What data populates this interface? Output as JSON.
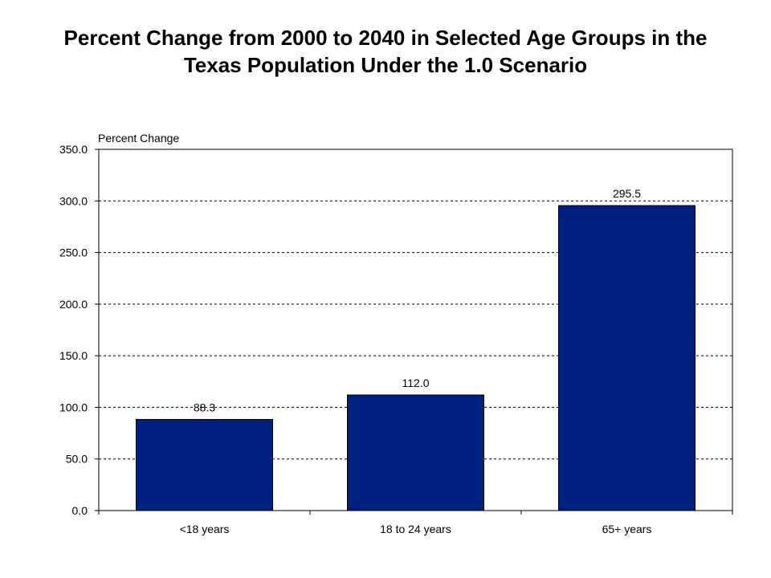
{
  "chart_data": {
    "type": "bar",
    "title": "Percent Change from 2000 to 2040 in Selected Age Groups in the Texas Population Under the 1.0 Scenario",
    "ylabel": "Percent Change",
    "xlabel": "",
    "categories": [
      "<18 years",
      "18 to 24 years",
      "65+ years"
    ],
    "values": [
      88.3,
      112.0,
      295.5
    ],
    "data_labels": [
      "88.3",
      "112.0",
      "295.5"
    ],
    "ylim": [
      0,
      350
    ],
    "yticks": [
      0,
      50,
      100,
      150,
      200,
      250,
      300,
      350
    ],
    "ytick_labels": [
      "0.0",
      "50.0",
      "100.0",
      "150.0",
      "200.0",
      "250.0",
      "300.0",
      "350.0"
    ],
    "grid": "horizontal dashed",
    "legend": "none",
    "bar_color": "#002080"
  }
}
